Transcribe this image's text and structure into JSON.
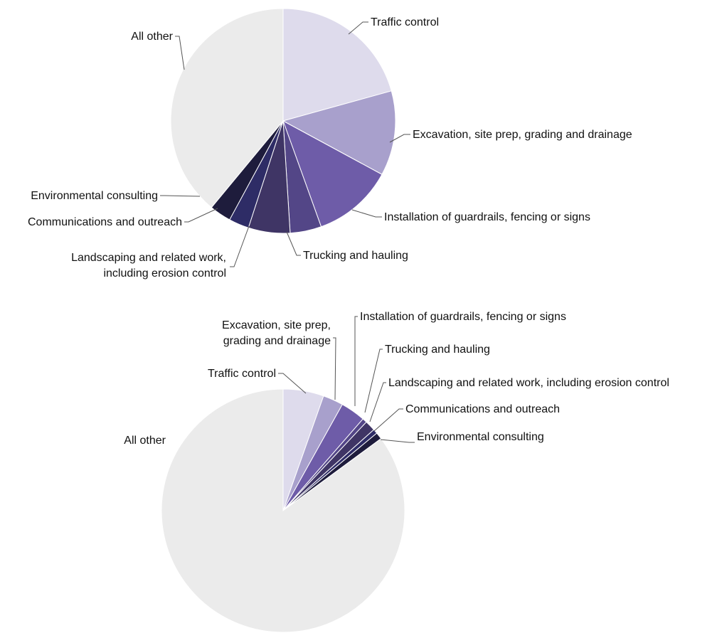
{
  "chart_data": [
    {
      "type": "pie",
      "title": "",
      "start_angle_deg": 0,
      "direction": "clockwise",
      "slices": [
        {
          "label": "Traffic control",
          "value": 20.7,
          "color": "#dedbec"
        },
        {
          "label": "Excavation, site prep, grading and drainage",
          "value": 12.2,
          "color": "#a8a0cc"
        },
        {
          "label": "Installation of guardrails, fencing or signs",
          "value": 11.6,
          "color": "#6e5ca8"
        },
        {
          "label": "Trucking and hauling",
          "value": 4.5,
          "color": "#534687"
        },
        {
          "label": "Landscaping and related work, including erosion control",
          "value": 6.0,
          "color": "#3f3565"
        },
        {
          "label": "Communications and outreach",
          "value": 2.9,
          "color": "#2e2c66"
        },
        {
          "label": "Environmental consulting",
          "value": 3.1,
          "color": "#1e1c3c"
        },
        {
          "label": "All other",
          "value": 39.0,
          "color": "#ebebeb"
        }
      ]
    },
    {
      "type": "pie",
      "title": "",
      "start_angle_deg": 0,
      "direction": "clockwise",
      "slices": [
        {
          "label": "Traffic control",
          "value": 5.4,
          "color": "#dedbec"
        },
        {
          "label": "Excavation, site prep, grading and drainage",
          "value": 2.7,
          "color": "#a8a0cc"
        },
        {
          "label": "Installation of guardrails, fencing or signs",
          "value": 3.3,
          "color": "#6e5ca8"
        },
        {
          "label": "Trucking and hauling",
          "value": 0.6,
          "color": "#534687"
        },
        {
          "label": "Landscaping and related work, including erosion control",
          "value": 1.4,
          "color": "#3f3565"
        },
        {
          "label": "Communications and outreach",
          "value": 0.6,
          "color": "#2e2c66"
        },
        {
          "label": "Environmental consulting",
          "value": 0.9,
          "color": "#1e1c3c"
        },
        {
          "label": "All other",
          "value": 85.1,
          "color": "#ebebeb"
        }
      ]
    }
  ]
}
